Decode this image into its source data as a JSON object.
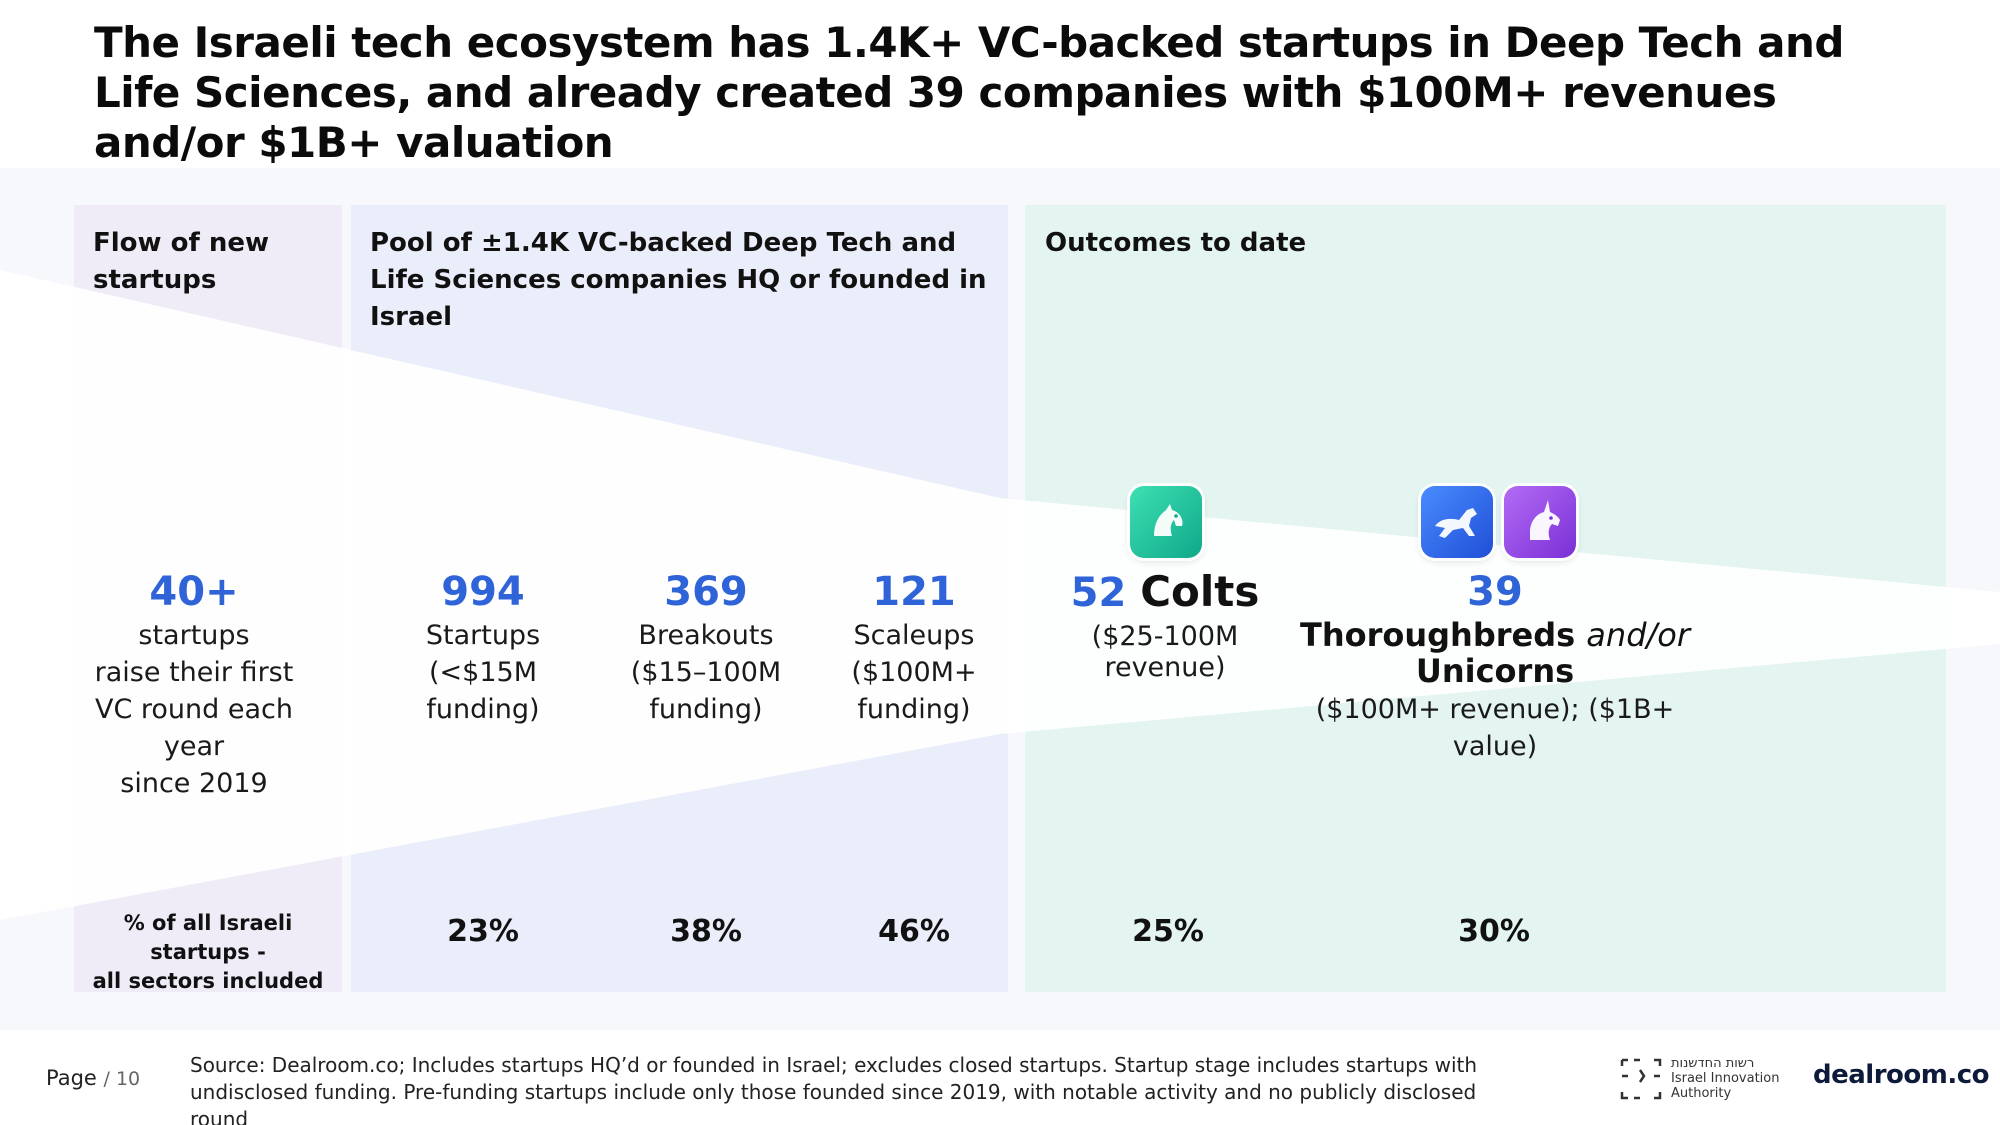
{
  "title": "The Israeli tech ecosystem has 1.4K+ VC-backed startups in Deep Tech and Life Sciences, and already created 39 companies with $100M+ revenues and/or $1B+ valuation",
  "panels": {
    "flow_title": "Flow of new startups",
    "pool_title": "Pool of ±1.4K VC-backed Deep Tech and Life Sciences companies HQ or founded in Israel",
    "outcomes_title": "Outcomes to date"
  },
  "columns": {
    "flow": {
      "value": "40+",
      "line1": "startups",
      "line2": "raise their first",
      "line3": "VC round each",
      "line4": "year",
      "line5": "since 2019"
    },
    "startups": {
      "value": "994",
      "line1": "Startups",
      "line2": "(<$15M funding)"
    },
    "breakouts": {
      "value": "369",
      "line1": "Breakouts",
      "line2": "($15–100M",
      "line3": "funding)"
    },
    "scaleups": {
      "value": "121",
      "line1": "Scaleups",
      "line2": "($100M+",
      "line3": "funding)"
    },
    "colts": {
      "value": "52",
      "word": "Colts",
      "line1": "($25-100M",
      "line2": "revenue)"
    },
    "thoroughbreds": {
      "value": "39",
      "word1": "Thoroughbreds",
      "word_and": "and/or",
      "word2": "Unicorns",
      "line1": "($100M+ revenue); ($1B+ value)"
    }
  },
  "percentages": {
    "label_line1": "% of all Israeli startups -",
    "label_line2": "all sectors included",
    "startups": "23%",
    "breakouts": "38%",
    "scaleups": "46%",
    "colts": "25%",
    "thoroughbreds": "30%"
  },
  "icons": {
    "colt": "colt-icon",
    "horse": "thoroughbred-horse-icon",
    "unicorn": "unicorn-icon"
  },
  "colors": {
    "accent_blue": "#2f63d8",
    "flow_panel": "#efecf8",
    "pool_panel": "#eaeefa",
    "outcomes_panel": "#e3f4f1"
  },
  "footer": {
    "page_label": "Page",
    "page_number": "/ 10",
    "source": "Source: Dealroom.co; Includes startups HQ’d or founded in Israel; excludes closed startups. Startup stage includes startups with undisclosed funding. Pre-funding startups include only those founded since 2019, with notable activity and no publicly disclosed round",
    "iia_hebrew": "רשות החדשנות",
    "iia_line1": "Israel Innovation",
    "iia_line2": "Authority",
    "dealroom": "dealroom.co"
  }
}
